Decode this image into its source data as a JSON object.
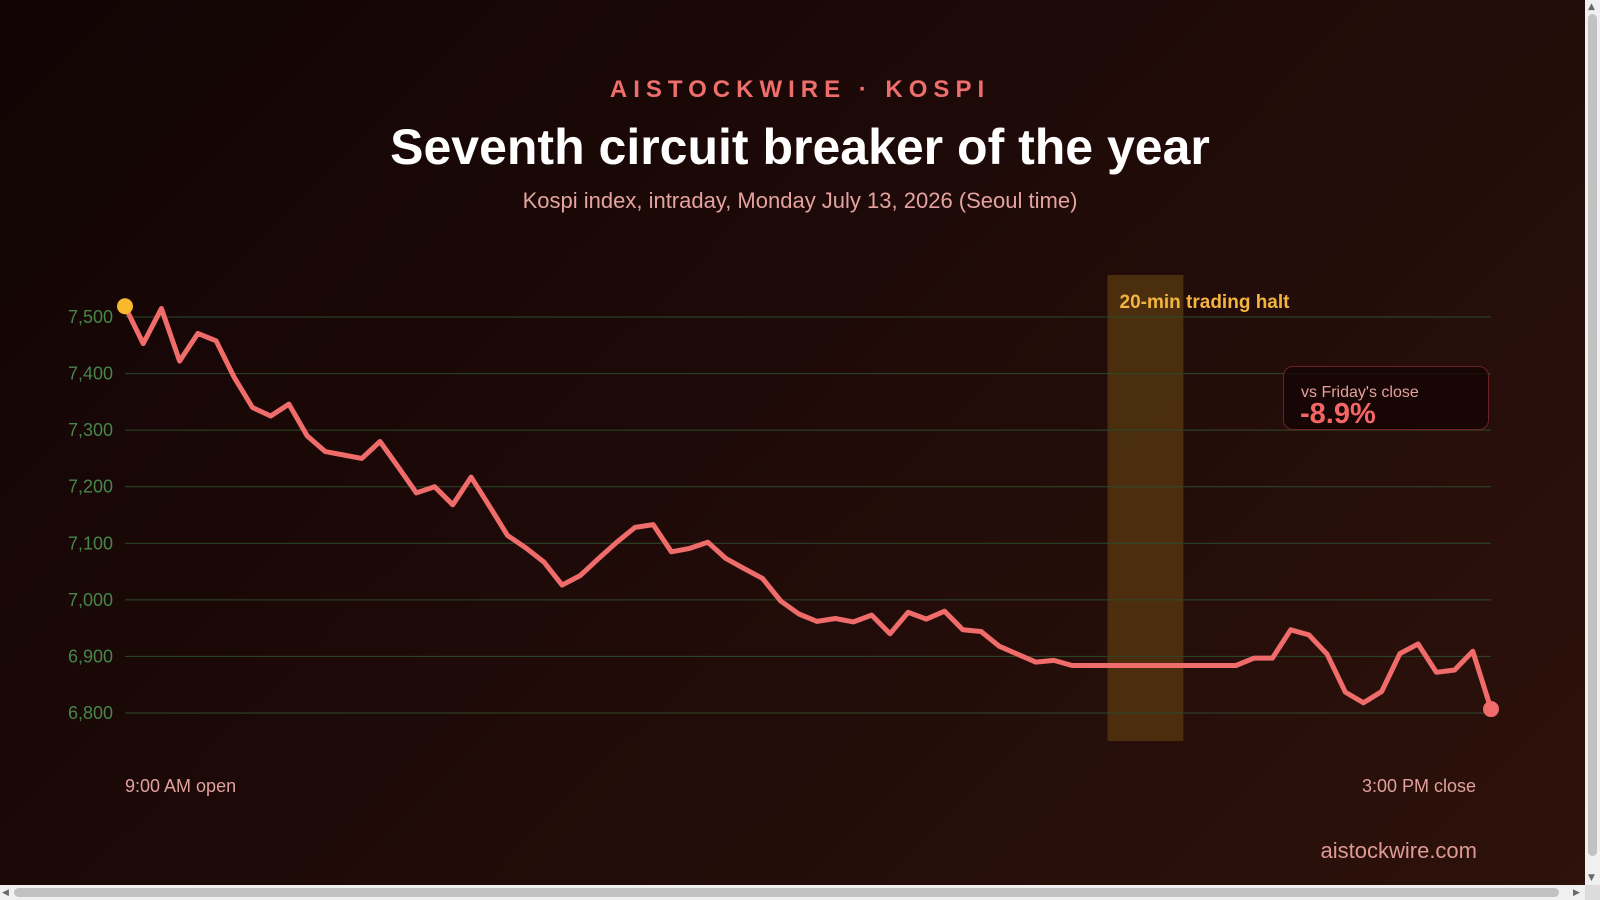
{
  "header": {
    "kicker": "AISTOCKWIRE · KOSPI",
    "title": "Seventh circuit breaker of the year",
    "subtitle": "Kospi index, intraday, Monday July 13, 2026 (Seoul time)"
  },
  "chart_data": {
    "type": "line",
    "title": "Seventh circuit breaker of the year",
    "subtitle": "Kospi index, intraday, Monday July 13, 2026 (Seoul time)",
    "xlabel": "",
    "ylabel": "",
    "x_start_label": "9:00 AM open",
    "x_end_label": "3:00 PM close",
    "ylim": [
      6800,
      7500
    ],
    "yticks": [
      7500,
      7400,
      7300,
      7200,
      7100,
      7000,
      6900,
      6800
    ],
    "ytick_labels": [
      "7,500",
      "7,400",
      "7,300",
      "7,200",
      "7,100",
      "7,000",
      "6,900",
      "6,800"
    ],
    "grid": true,
    "series": [
      {
        "values": [
          7519,
          7453,
          7515,
          7422,
          7471,
          7458,
          7393,
          7340,
          7325,
          7346,
          7290,
          7262,
          7256,
          7250,
          7280,
          7235,
          7189,
          7200,
          7168,
          7217,
          7166,
          7114,
          7092,
          7067,
          7026,
          7043,
          7073,
          7102,
          7128,
          7133,
          7085,
          7091,
          7102,
          7073,
          7055,
          7038,
          6998,
          6975,
          6962,
          6967,
          6961,
          6973,
          6940,
          6978,
          6966,
          6980,
          6947,
          6944,
          6918,
          6904,
          6890,
          6893,
          6884,
          6884,
          6884,
          6884,
          6884,
          6884,
          6884,
          6884,
          6884,
          6884,
          6897,
          6897,
          6947,
          6938,
          6904,
          6837,
          6818,
          6838,
          6905,
          6922,
          6872,
          6876,
          6909,
          6807
        ]
      }
    ],
    "annotations": [
      {
        "label": "20-min trading halt",
        "start_index": 54,
        "end_index": 58
      },
      {
        "label": "vs Friday's close",
        "value": "-8.9%"
      }
    ],
    "colors": {
      "line": "#f06c6a",
      "open_marker": "#f9b92c",
      "close_marker": "#f06c6a",
      "grid": "#2b4a2a",
      "y_tick": "#47854a",
      "halt_band": "#5a3a10",
      "halt_label": "#f4b440"
    }
  },
  "callout": {
    "label": "vs Friday's close",
    "value": "-8.9%"
  },
  "footer": {
    "source": "aistockwire.com"
  }
}
